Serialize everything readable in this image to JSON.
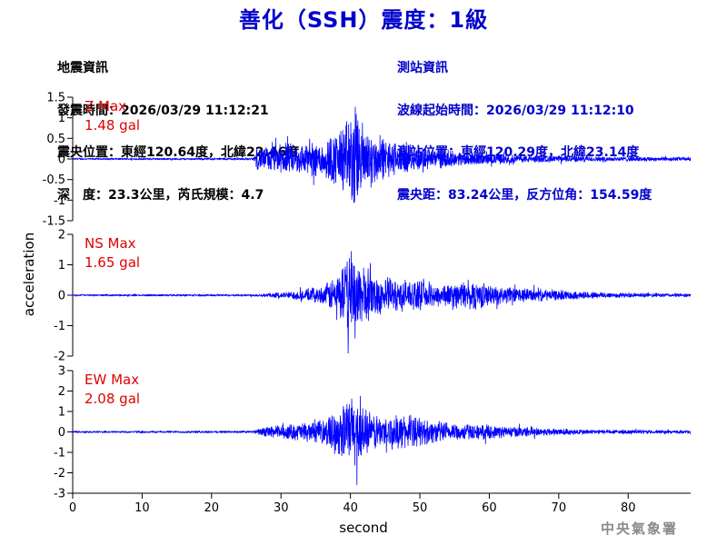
{
  "header": {
    "title": "善化（SSH）震度：1級"
  },
  "earthquake_info": {
    "heading": "地震資訊",
    "origin_time": "發震時間：2026/03/29 11:12:21",
    "epicenter": "震央位置：東經120.64度，北緯22.46度",
    "depth_magnitude": "深　度：23.3公里，芮氏規模：4.7"
  },
  "station_info": {
    "heading": "測站資訊",
    "wave_start": "波線起始時間：2026/03/29 11:12:10",
    "location": "測站位置：東經120.29度，北緯23.14度",
    "distance_azimuth": "震央距：83.24公里，反方位角：154.59度"
  },
  "footer": {
    "agency": "中央氣象署"
  },
  "colors": {
    "trace": "#0000ff",
    "max_label": "#e00000",
    "title": "#0000cc"
  },
  "chart_data": {
    "type": "line",
    "xlabel": "second",
    "ylabel": "acceleration",
    "xlim": [
      0,
      89
    ],
    "xticks": [
      0,
      10,
      20,
      30,
      40,
      50,
      60,
      70,
      80
    ],
    "grid": false,
    "panels": [
      {
        "name": "Z",
        "max_label": "Z Max",
        "max_value": "1.48 gal",
        "ylim": [
          -1.5,
          1.5
        ],
        "yticks": [
          -1.5,
          -1,
          -0.5,
          0,
          0.5,
          1,
          1.5
        ],
        "envelope": [
          [
            0,
            0.02
          ],
          [
            26,
            0.03
          ],
          [
            26.5,
            0.28
          ],
          [
            30,
            0.4
          ],
          [
            33,
            0.42
          ],
          [
            36,
            0.5
          ],
          [
            38,
            0.75
          ],
          [
            39.5,
            1.05
          ],
          [
            40.5,
            1.48
          ],
          [
            41.5,
            1.05
          ],
          [
            43,
            0.7
          ],
          [
            45,
            0.55
          ],
          [
            48,
            0.35
          ],
          [
            52,
            0.25
          ],
          [
            57,
            0.17
          ],
          [
            65,
            0.1
          ],
          [
            75,
            0.07
          ],
          [
            89,
            0.05
          ]
        ]
      },
      {
        "name": "NS",
        "max_label": "NS Max",
        "max_value": "1.65 gal",
        "ylim": [
          -2,
          2
        ],
        "yticks": [
          -2,
          -1,
          0,
          1,
          2
        ],
        "envelope": [
          [
            0,
            0.03
          ],
          [
            26,
            0.04
          ],
          [
            31,
            0.12
          ],
          [
            36,
            0.3
          ],
          [
            38,
            0.75
          ],
          [
            39.5,
            1.3
          ],
          [
            40.2,
            1.65
          ],
          [
            41.5,
            1.2
          ],
          [
            43,
            0.8
          ],
          [
            46,
            0.6
          ],
          [
            50,
            0.5
          ],
          [
            54,
            0.4
          ],
          [
            58,
            0.55
          ],
          [
            60,
            0.35
          ],
          [
            65,
            0.25
          ],
          [
            72,
            0.15
          ],
          [
            80,
            0.08
          ],
          [
            89,
            0.06
          ]
        ]
      },
      {
        "name": "EW",
        "max_label": "EW Max",
        "max_value": "2.08 gal",
        "ylim": [
          -3,
          3
        ],
        "yticks": [
          -3,
          -2,
          -1,
          0,
          1,
          2,
          3
        ],
        "envelope": [
          [
            0,
            0.05
          ],
          [
            26,
            0.06
          ],
          [
            28,
            0.3
          ],
          [
            31,
            0.4
          ],
          [
            36,
            0.6
          ],
          [
            38.5,
            1.3
          ],
          [
            40.5,
            2.08
          ],
          [
            41.5,
            1.5
          ],
          [
            43,
            1.0
          ],
          [
            45,
            0.85
          ],
          [
            48,
            0.9
          ],
          [
            52,
            0.6
          ],
          [
            56,
            0.45
          ],
          [
            60,
            0.35
          ],
          [
            67,
            0.22
          ],
          [
            75,
            0.12
          ],
          [
            89,
            0.08
          ]
        ]
      }
    ]
  }
}
